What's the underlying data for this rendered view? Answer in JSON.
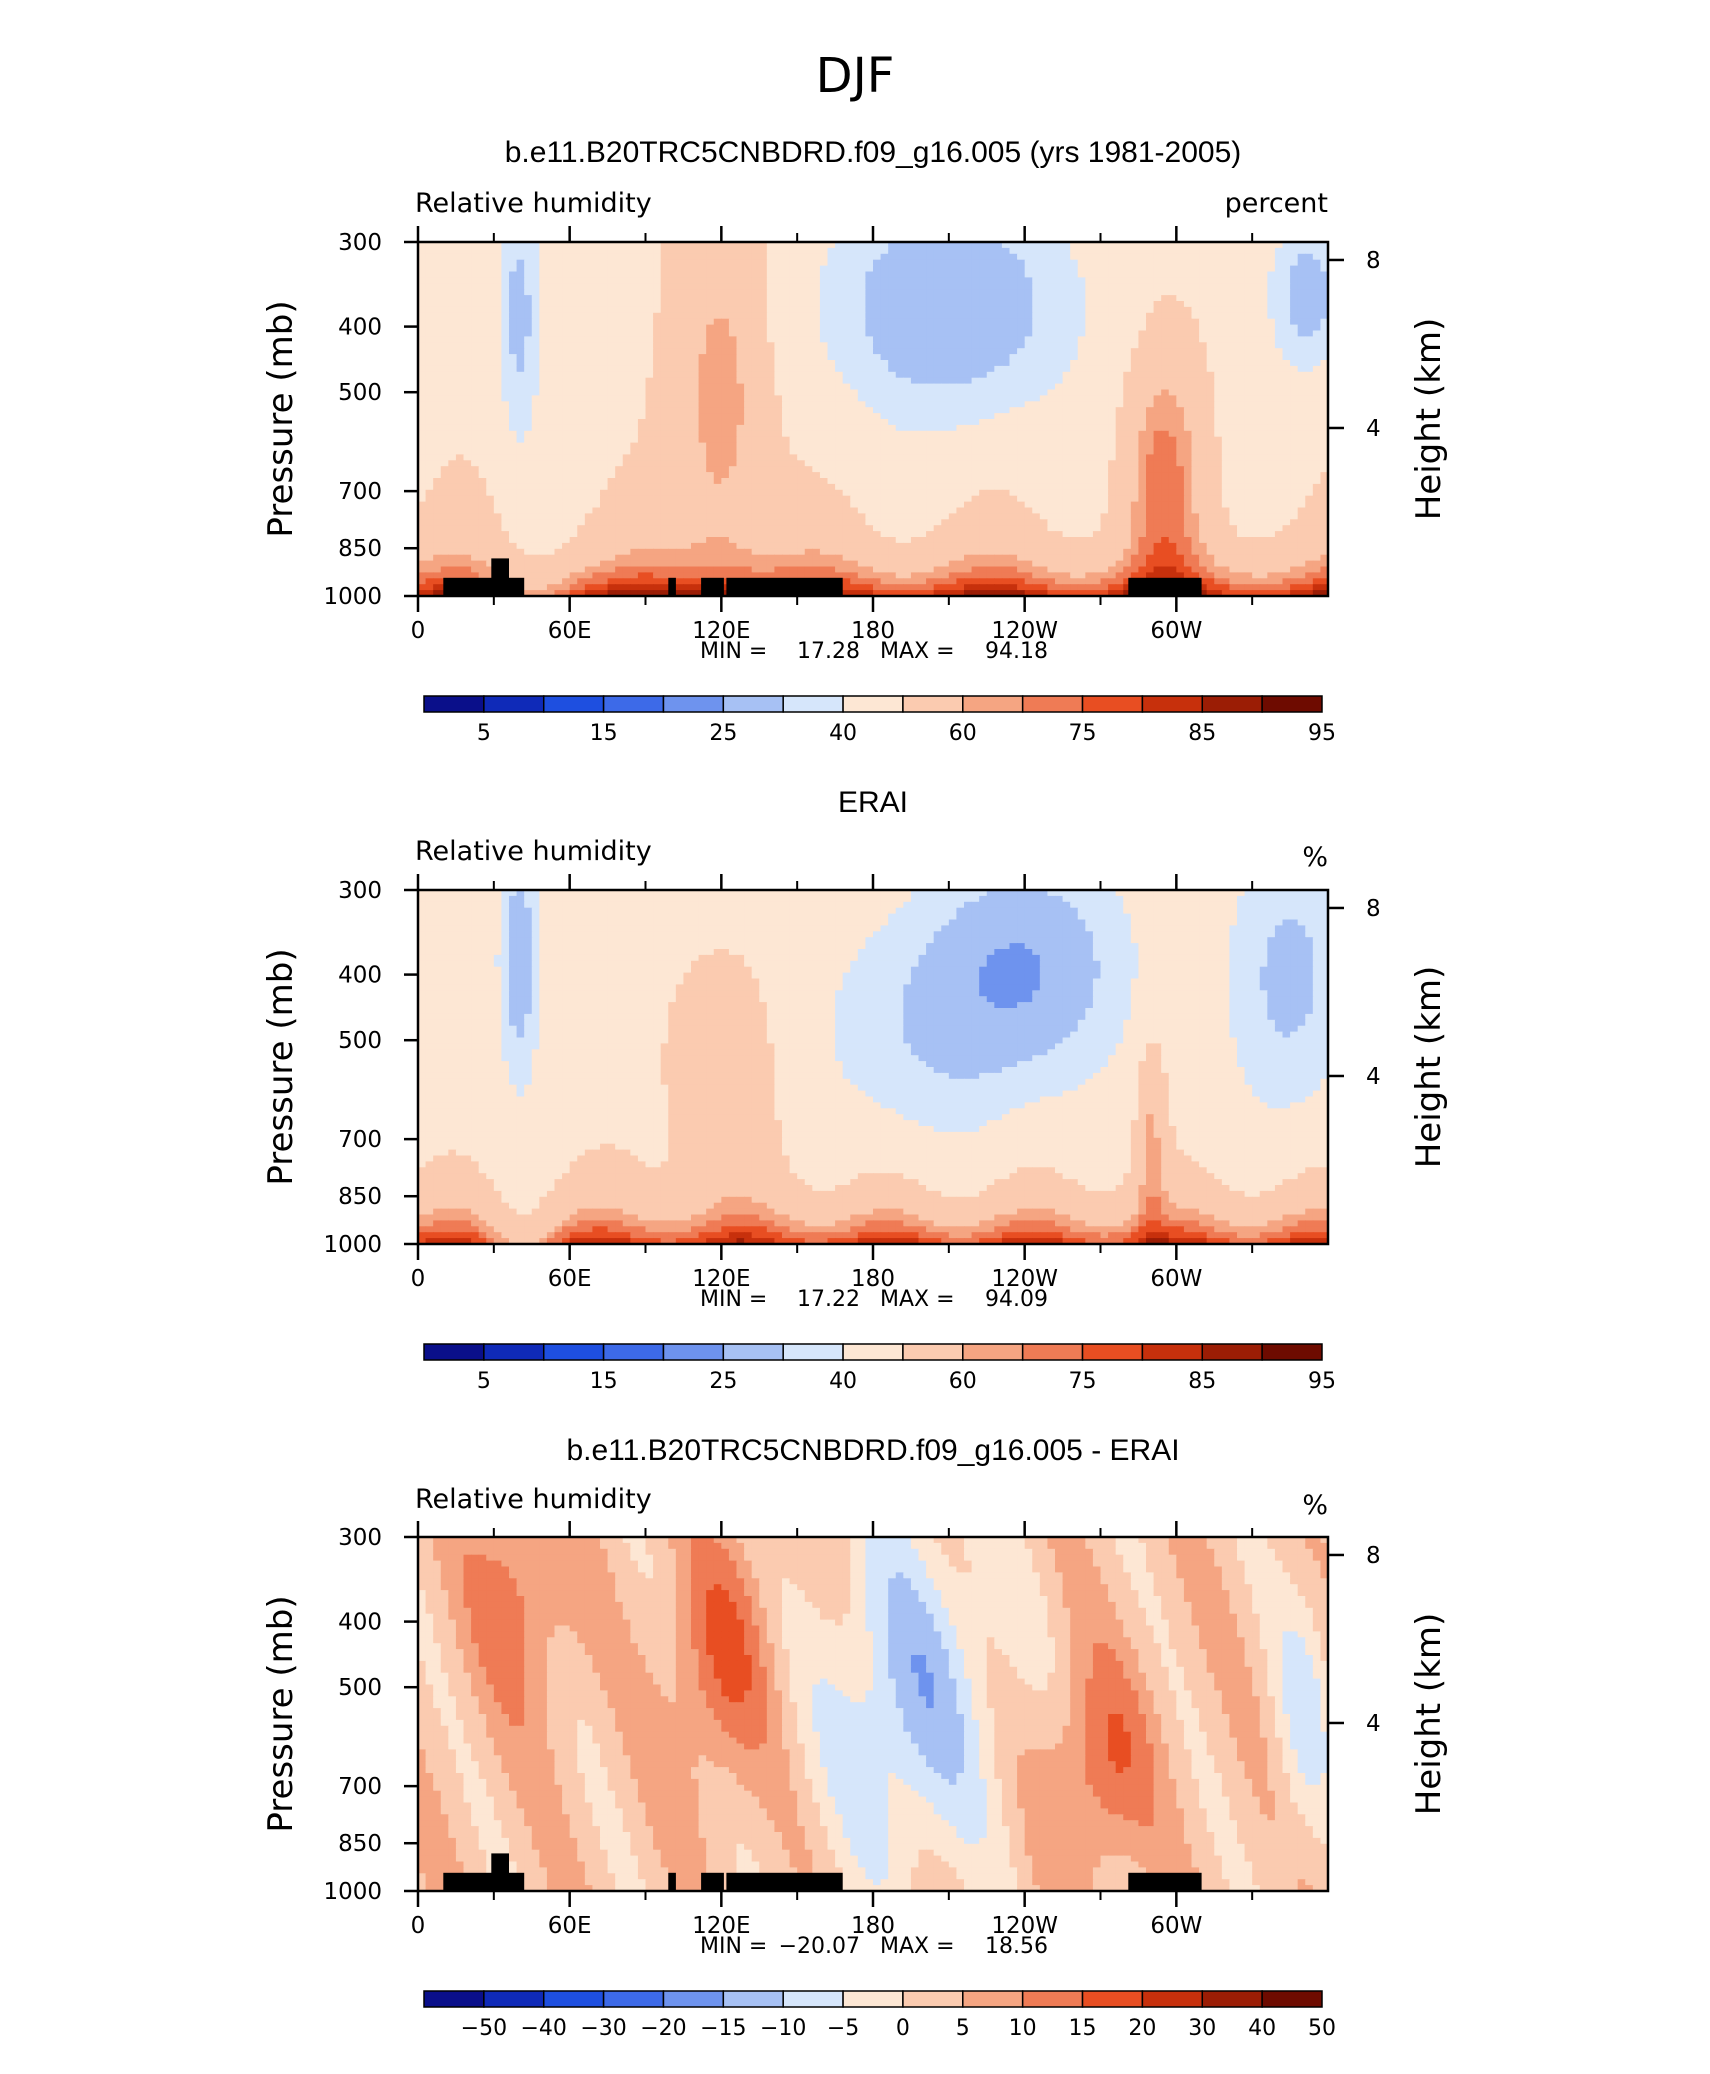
{
  "main_title": "DJF",
  "colors": {
    "rh_scale": [
      "#0a0f8a",
      "#0f2ab8",
      "#1e4fe0",
      "#3d6ae8",
      "#6e93ee",
      "#a7c1f4",
      "#d6e6fb",
      "#fde7d4",
      "#fbcbb0",
      "#f5a582",
      "#ef7b55",
      "#e84e22",
      "#c7300c",
      "#9b1d05",
      "#6e0b00"
    ],
    "diff_scale": [
      "#0a0f8a",
      "#0f2ab8",
      "#1e4fe0",
      "#3d6ae8",
      "#6e93ee",
      "#a7c1f4",
      "#d6e6fb",
      "#fde7d4",
      "#fbcbb0",
      "#f5a582",
      "#ef7b55",
      "#e84e22",
      "#c7300c",
      "#9b1d05",
      "#6e0b00"
    ],
    "topography": "#000000"
  },
  "chart_data": [
    {
      "type": "heatmap",
      "title": "b.e11.B20TRC5CNBDRD.f09_g16.005 (yrs 1981-2005)",
      "left_label": "Relative humidity",
      "right_label": "percent",
      "ylabel": "Pressure (mb)",
      "y2label": "Height (km)",
      "x_ticks": [
        "0",
        "60E",
        "120E",
        "180",
        "120W",
        "60W"
      ],
      "y_ticks": [
        "300",
        "400",
        "500",
        "700",
        "850",
        "1000"
      ],
      "y2_ticks": [
        "8",
        "4"
      ],
      "stats": {
        "min_label": "MIN =",
        "min": "17.28",
        "max_label": "MAX =",
        "max": "94.18"
      },
      "colorbar_labels": [
        "5",
        "15",
        "25",
        "40",
        "60",
        "75",
        "85",
        "95"
      ],
      "variant": "model",
      "topography": true
    },
    {
      "type": "heatmap",
      "title": "ERAI",
      "left_label": "Relative humidity",
      "right_label": "%",
      "ylabel": "Pressure (mb)",
      "y2label": "Height (km)",
      "x_ticks": [
        "0",
        "60E",
        "120E",
        "180",
        "120W",
        "60W"
      ],
      "y_ticks": [
        "300",
        "400",
        "500",
        "700",
        "850",
        "1000"
      ],
      "y2_ticks": [
        "8",
        "4"
      ],
      "stats": {
        "min_label": "MIN =",
        "min": "17.22",
        "max_label": "MAX =",
        "max": "94.09"
      },
      "colorbar_labels": [
        "5",
        "15",
        "25",
        "40",
        "60",
        "75",
        "85",
        "95"
      ],
      "variant": "obs",
      "topography": false
    },
    {
      "type": "heatmap",
      "title": "b.e11.B20TRC5CNBDRD.f09_g16.005 - ERAI",
      "left_label": "Relative humidity",
      "right_label": "%",
      "ylabel": "Pressure (mb)",
      "y2label": "Height (km)",
      "x_ticks": [
        "0",
        "60E",
        "120E",
        "180",
        "120W",
        "60W"
      ],
      "y_ticks": [
        "300",
        "400",
        "500",
        "700",
        "850",
        "1000"
      ],
      "y2_ticks": [
        "8",
        "4"
      ],
      "stats": {
        "min_label": "MIN =",
        "min": "−20.07",
        "max_label": "MAX =",
        "max": "18.56"
      },
      "colorbar_labels": [
        "−50",
        "−40",
        "−30",
        "−20",
        "−15",
        "−10",
        "−5",
        "0",
        "5",
        "10",
        "15",
        "20",
        "30",
        "40",
        "50"
      ],
      "variant": "diff",
      "topography": true
    }
  ]
}
